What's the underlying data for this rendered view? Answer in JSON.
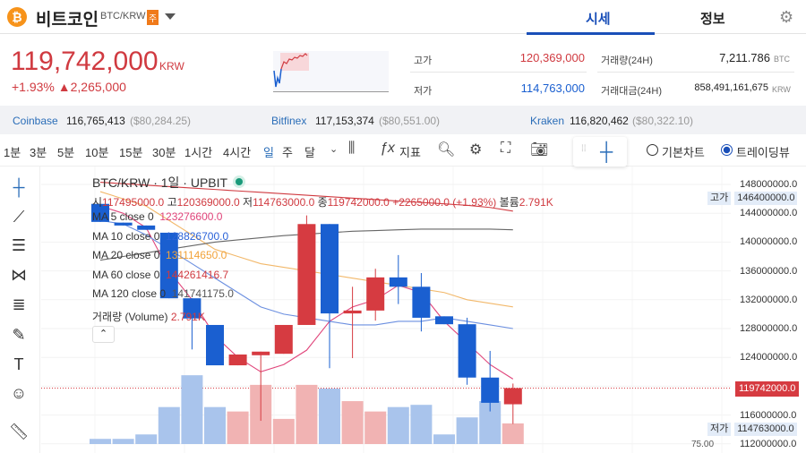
{
  "header": {
    "coin_name": "비트코인",
    "pair": "BTC/KRW",
    "badge": "주",
    "tabs": [
      "시세",
      "정보"
    ],
    "active_tab": "시세"
  },
  "summary": {
    "price": "119,742,000",
    "unit": "KRW",
    "change_pct": "+1.93%",
    "change_abs": "▲2,265,000",
    "stats": [
      {
        "label": "고가",
        "value": "120,369,000",
        "color": "#d03a40"
      },
      {
        "label": "저가",
        "value": "114,763,000",
        "color": "#1a5fd0"
      },
      {
        "label": "거래량(24H)",
        "value": "7,211.786",
        "unit": "BTC"
      },
      {
        "label": "거래대금(24H)",
        "value": "858,491,161,675",
        "unit": "KRW"
      }
    ]
  },
  "exchanges": [
    {
      "name": "Coinbase",
      "price": "116,765,413",
      "usd": "($80,284.25)"
    },
    {
      "name": "Bitfinex",
      "price": "117,153,374",
      "usd": "($80,551.00)"
    },
    {
      "name": "Kraken",
      "price": "116,820,462",
      "usd": "($80,322.10)"
    }
  ],
  "toolbar": {
    "timeframes": [
      "1분",
      "3분",
      "5분",
      "10분",
      "15분",
      "30분",
      "1시간",
      "4시간",
      "일",
      "주",
      "달"
    ],
    "active_timeframe": "일",
    "indicator_label": "지표",
    "chart_modes": [
      "기본차트",
      "트레이딩뷰"
    ],
    "active_mode": "트레이딩뷰"
  },
  "chart": {
    "title": "BTC/KRW · 1일 · UPBIT",
    "ohlc": {
      "o_label": "시",
      "o": "117495000.0",
      "h_label": "고",
      "h": "120369000.0",
      "l_label": "저",
      "l": "114763000.0",
      "c_label": "종",
      "c": "119742000.0",
      "change": "+2265000.0 (+1.93%)",
      "vol_label": "볼륨",
      "vol": "2.791K"
    },
    "ma": [
      {
        "label": "MA 5 close 0",
        "value": "123276600.0",
        "color": "#e0447a"
      },
      {
        "label": "MA 10 close 0",
        "value": "128826700.0",
        "color": "#2a62d8"
      },
      {
        "label": "MA 20 close 0",
        "value": "131114650.0",
        "color": "#f2a33a"
      },
      {
        "label": "MA 60 close 0",
        "value": "144261416.7",
        "color": "#d03a40"
      },
      {
        "label": "MA 120 close 0",
        "value": "141741175.0",
        "color": "#555555"
      }
    ],
    "volume_label": "거래량 (Volume)",
    "volume_value": "2.791K",
    "y_ticks": [
      "148000000.0",
      "144000000.0",
      "140000000.0",
      "136000000.0",
      "132000000.0",
      "128000000.0",
      "124000000.0",
      "116000000.0",
      "112000000.0"
    ],
    "high_tag": {
      "label": "고가",
      "value": "146400000.0"
    },
    "low_tag": {
      "label": "저가",
      "value": "114763000.0"
    },
    "last_price_tag": "119742000.0",
    "volume_axis_partial": "75.00",
    "up_color": "#d63b41",
    "down_color": "#1a5fd0",
    "candles_millions": [
      [
        145.3,
        142.8,
        145.3,
        142.8
      ],
      [
        142.7,
        142.3,
        142.7,
        142.3
      ],
      [
        142.3,
        141.7,
        142.3,
        141.7
      ],
      [
        141.3,
        132.2,
        141.3,
        132.2
      ],
      [
        132.2,
        129.4,
        132.2,
        125.1
      ],
      [
        128.5,
        122.9,
        128.5,
        122.9
      ],
      [
        122.9,
        124.4,
        124.4,
        122.9
      ],
      [
        124.3,
        124.8,
        124.8,
        115.2
      ],
      [
        124.5,
        128.5,
        128.5,
        124.5
      ],
      [
        128.5,
        142.5,
        143.7,
        128.5
      ],
      [
        142.5,
        130.1,
        142.5,
        122.5
      ],
      [
        130.1,
        130.5,
        133.8,
        123.9
      ],
      [
        130.5,
        135.1,
        136.3,
        129.1
      ],
      [
        135.1,
        133.8,
        138.2,
        131.4
      ],
      [
        133.8,
        129.5,
        135.7,
        127.6
      ],
      [
        129.7,
        128.6,
        129.7,
        128.6
      ],
      [
        128.6,
        121.2,
        129.5,
        120.2
      ],
      [
        121.2,
        117.7,
        124.9,
        116.5
      ],
      [
        117.495,
        119.742,
        120.369,
        114.763
      ]
    ],
    "volumes_k": [
      0.7,
      0.7,
      1.3,
      5.0,
      9.3,
      5.0,
      4.4,
      8.0,
      3.4,
      8.0,
      7.5,
      5.8,
      4.4,
      5.0,
      5.3,
      1.3,
      3.6,
      5.8,
      2.791
    ],
    "ma_lines_millions": {
      "ma5": [
        145,
        144,
        142,
        136,
        132,
        127,
        124,
        122,
        123,
        125,
        129,
        131,
        132,
        134,
        133,
        129,
        126,
        123,
        121
      ],
      "ma10": [
        143,
        142.5,
        141,
        139,
        137,
        135,
        133,
        131,
        130,
        129.5,
        129,
        128.5,
        128.5,
        129,
        129,
        129.5,
        129,
        128.5,
        128
      ],
      "ma20": [
        147,
        146,
        145,
        143,
        141,
        139,
        138,
        137,
        136.5,
        136,
        135.5,
        135,
        134.5,
        134,
        133.5,
        133,
        132,
        131.5,
        131
      ],
      "ma60": [
        148.3,
        148.1,
        147.9,
        147.7,
        147.5,
        147.3,
        147.1,
        146.9,
        146.7,
        146.5,
        146.3,
        146.1,
        145.9,
        145.7,
        145.5,
        145.3,
        145.1,
        144.8,
        144.3
      ],
      "ma120": [
        137.5,
        138,
        138.5,
        139,
        139.5,
        140,
        140.3,
        140.6,
        140.9,
        141.1,
        141.3,
        141.5,
        141.6,
        141.7,
        141.8,
        141.8,
        141.8,
        141.8,
        141.7
      ]
    }
  }
}
